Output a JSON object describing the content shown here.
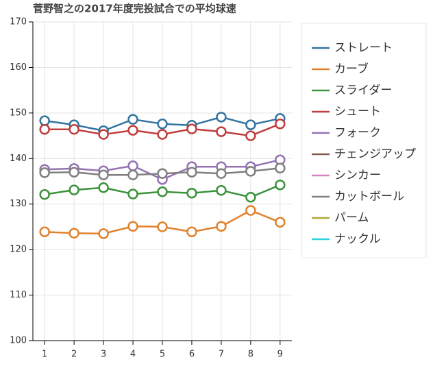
{
  "chart_data": {
    "type": "line",
    "title": "菅野智之の2017年度完投試合での平均球速",
    "x": [
      1,
      2,
      3,
      4,
      5,
      6,
      7,
      8,
      9
    ],
    "xlim": [
      0.6,
      9.4
    ],
    "xticks": [
      1,
      2,
      3,
      4,
      5,
      6,
      7,
      8,
      9
    ],
    "ylim": [
      100,
      170
    ],
    "yticks": [
      100,
      110,
      120,
      130,
      140,
      150,
      160,
      170
    ],
    "grid": true,
    "legend": "right",
    "series": [
      {
        "name": "ストレート",
        "color": "#3274a1",
        "values": [
          148.3,
          147.4,
          146.1,
          148.6,
          147.6,
          147.3,
          149.1,
          147.4,
          148.8
        ]
      },
      {
        "name": "カーブ",
        "color": "#e1812c",
        "values": [
          123.9,
          123.6,
          123.5,
          125.1,
          125.0,
          123.9,
          125.1,
          128.6,
          126.0
        ]
      },
      {
        "name": "スライダー",
        "color": "#3a923a",
        "values": [
          132.1,
          133.1,
          133.6,
          132.2,
          132.7,
          132.4,
          133.0,
          131.5,
          134.2
        ]
      },
      {
        "name": "シュート",
        "color": "#c03d3e",
        "values": [
          146.4,
          146.4,
          145.3,
          146.2,
          145.3,
          146.5,
          145.9,
          145.0,
          147.6
        ]
      },
      {
        "name": "フォーク",
        "color": "#9372b2",
        "values": [
          137.6,
          137.8,
          137.3,
          138.4,
          135.4,
          138.2,
          138.2,
          138.2,
          139.7
        ]
      },
      {
        "name": "チェンジアップ",
        "color": "#845b53",
        "values": [
          null,
          null,
          null,
          null,
          null,
          null,
          null,
          null,
          null
        ]
      },
      {
        "name": "シンカー",
        "color": "#d684bd",
        "values": [
          null,
          null,
          null,
          null,
          null,
          null,
          null,
          null,
          null
        ]
      },
      {
        "name": "カットボール",
        "color": "#7f7f7f",
        "values": [
          136.9,
          137.0,
          136.4,
          136.4,
          136.7,
          137.0,
          136.7,
          137.2,
          137.9
        ]
      },
      {
        "name": "パーム",
        "color": "#a9aa35",
        "values": [
          null,
          null,
          null,
          null,
          null,
          null,
          null,
          null,
          null
        ]
      },
      {
        "name": "ナックル",
        "color": "#2ed0de",
        "values": [
          null,
          null,
          null,
          null,
          null,
          null,
          null,
          null,
          null
        ]
      }
    ]
  }
}
